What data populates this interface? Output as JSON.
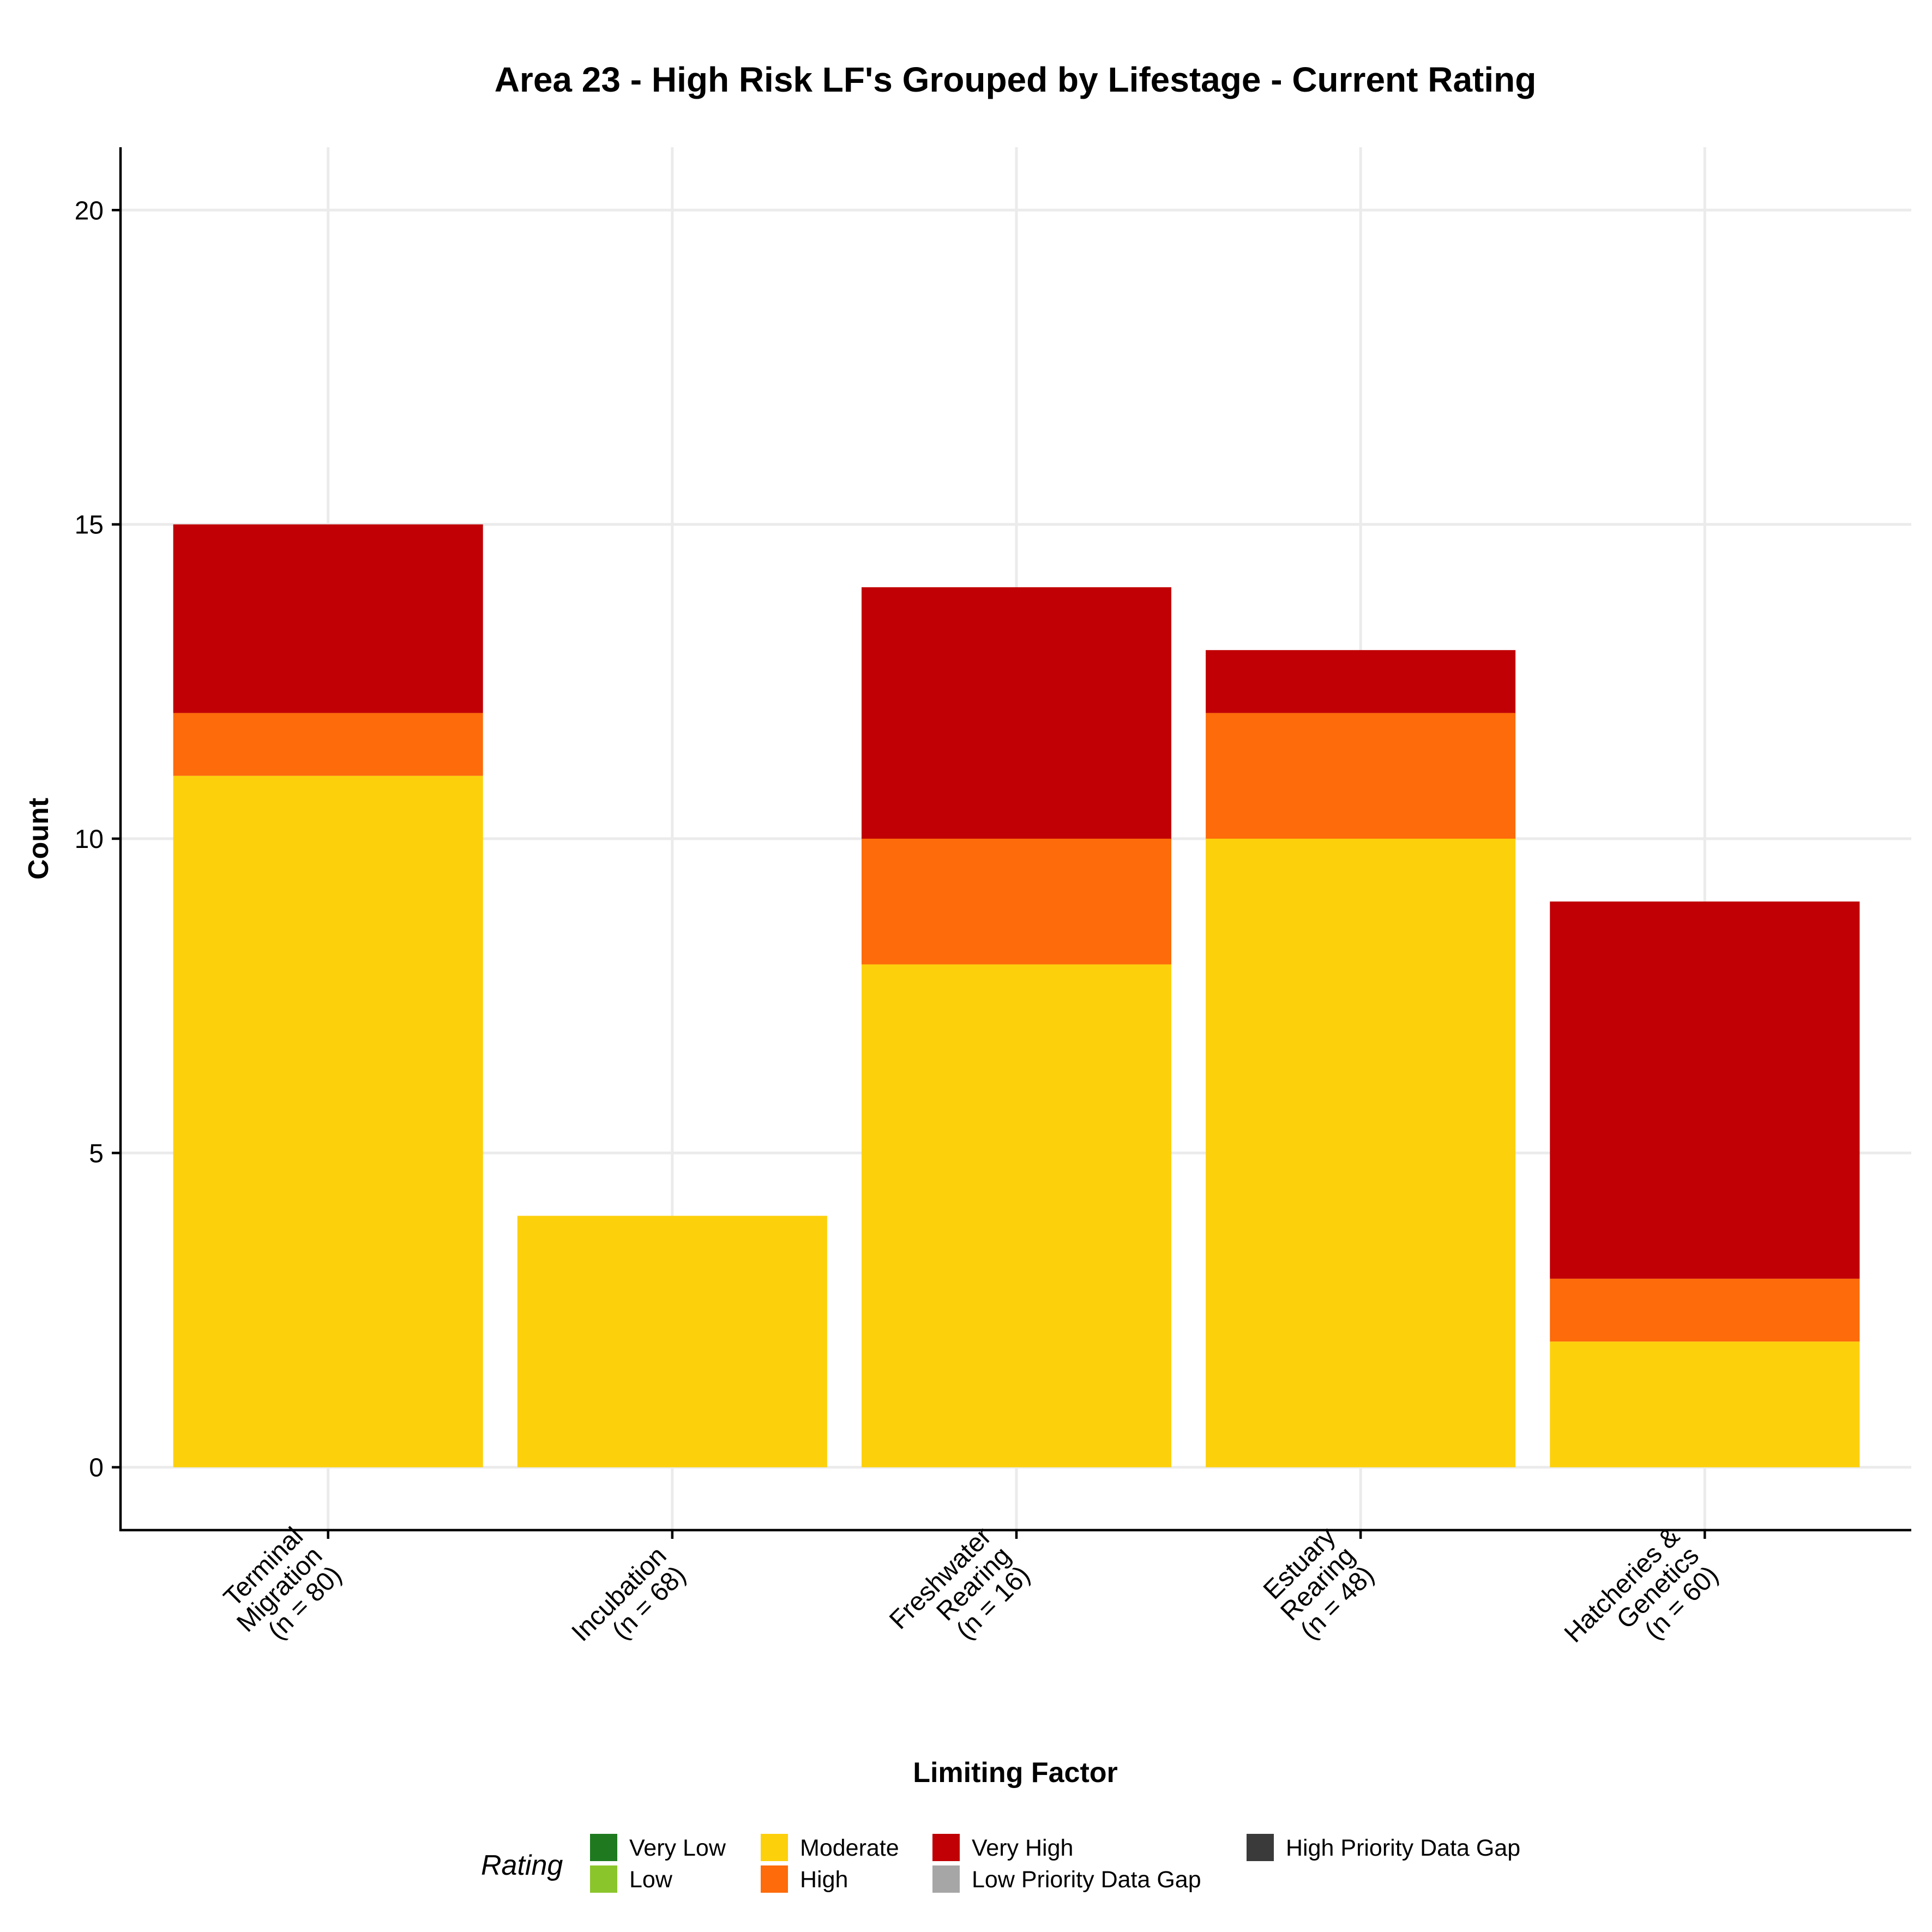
{
  "chart_data": {
    "type": "bar",
    "stacked": true,
    "title": "Area 23 - High Risk LF's Grouped by Lifestage - Current Rating",
    "xlabel": "Limiting Factor",
    "ylabel": "Count",
    "ylim": [
      -1,
      21
    ],
    "yticks": [
      0,
      5,
      10,
      15,
      20
    ],
    "grid": true,
    "categories": [
      [
        "Terminal",
        "Migration",
        "(n = 80)"
      ],
      [
        "Incubation",
        "(n = 68)"
      ],
      [
        "Freshwater",
        "Rearing",
        "(n = 16)"
      ],
      [
        "Estuary",
        "Rearing",
        "(n = 48)"
      ],
      [
        "Hatcheries &",
        "Genetics",
        "(n = 60)"
      ]
    ],
    "series": [
      {
        "name": "Moderate",
        "color": "#FDD00C",
        "values": [
          11,
          4,
          8,
          10,
          2
        ]
      },
      {
        "name": "High",
        "color": "#FD6B0A",
        "values": [
          1,
          0,
          2,
          2,
          1
        ]
      },
      {
        "name": "Very High",
        "color": "#C00004",
        "values": [
          3,
          0,
          4,
          1,
          6
        ]
      }
    ],
    "legend": {
      "title": "Rating",
      "position": "bottom",
      "entries": [
        {
          "label": "Very Low",
          "color": "#1F7A1F"
        },
        {
          "label": "Low",
          "color": "#8BC52C"
        },
        {
          "label": "Moderate",
          "color": "#FDD00C"
        },
        {
          "label": "High",
          "color": "#FD6B0A"
        },
        {
          "label": "Very High",
          "color": "#C00004"
        },
        {
          "label": "Low Priority Data Gap",
          "color": "#A6A6A6"
        },
        {
          "label": "High Priority Data Gap",
          "color": "#3A3A3A"
        }
      ]
    }
  }
}
